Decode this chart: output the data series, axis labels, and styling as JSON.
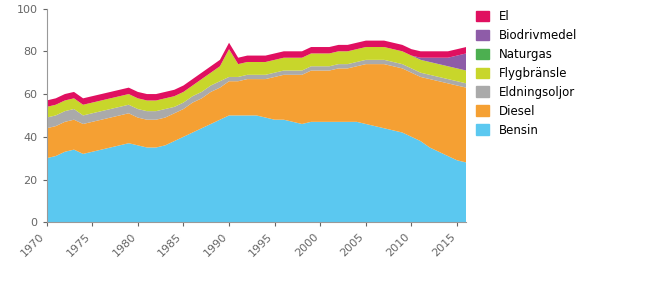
{
  "years": [
    1970,
    1971,
    1972,
    1973,
    1974,
    1975,
    1976,
    1977,
    1978,
    1979,
    1980,
    1981,
    1982,
    1983,
    1984,
    1985,
    1986,
    1987,
    1988,
    1989,
    1990,
    1991,
    1992,
    1993,
    1994,
    1995,
    1996,
    1997,
    1998,
    1999,
    2000,
    2001,
    2002,
    2003,
    2004,
    2005,
    2006,
    2007,
    2008,
    2009,
    2010,
    2011,
    2012,
    2013,
    2014,
    2015,
    2016
  ],
  "bensin": [
    30,
    31,
    33,
    34,
    32,
    33,
    34,
    35,
    36,
    37,
    36,
    35,
    35,
    36,
    38,
    40,
    42,
    44,
    46,
    48,
    50,
    50,
    50,
    50,
    49,
    48,
    48,
    47,
    46,
    47,
    47,
    47,
    47,
    47,
    47,
    46,
    45,
    44,
    43,
    42,
    40,
    38,
    35,
    33,
    31,
    29,
    28
  ],
  "diesel": [
    14,
    14,
    14,
    14,
    14,
    14,
    14,
    14,
    14,
    14,
    13,
    13,
    13,
    13,
    13,
    13,
    14,
    14,
    15,
    15,
    16,
    16,
    17,
    17,
    18,
    20,
    21,
    22,
    23,
    24,
    24,
    24,
    25,
    25,
    26,
    28,
    29,
    30,
    30,
    30,
    30,
    30,
    32,
    33,
    34,
    35,
    35
  ],
  "eldningsoljar": [
    5,
    5,
    5,
    5,
    4,
    4,
    4,
    4,
    4,
    4,
    4,
    4,
    4,
    4,
    3,
    3,
    3,
    3,
    3,
    3,
    2,
    2,
    2,
    2,
    2,
    2,
    2,
    2,
    2,
    2,
    2,
    2,
    2,
    2,
    2,
    2,
    2,
    2,
    2,
    2,
    2,
    2,
    2,
    2,
    2,
    2,
    2
  ],
  "flygbransle": [
    5,
    5,
    5,
    5,
    5,
    5,
    5,
    5,
    5,
    5,
    5,
    5,
    5,
    5,
    5,
    5,
    5,
    6,
    6,
    7,
    13,
    6,
    6,
    6,
    6,
    6,
    6,
    6,
    6,
    6,
    6,
    6,
    6,
    6,
    6,
    6,
    6,
    6,
    6,
    6,
    6,
    6,
    6,
    6,
    6,
    6,
    6
  ],
  "naturgas": [
    0,
    0,
    0,
    0,
    0,
    0,
    0,
    0,
    0,
    0,
    0,
    0,
    0,
    0,
    0,
    0,
    0,
    0,
    0,
    0,
    0,
    0,
    0,
    0,
    0,
    0,
    0,
    0,
    0,
    0,
    0,
    0,
    0,
    0,
    0,
    0,
    0,
    0,
    0,
    0,
    0,
    0,
    0,
    0,
    0,
    0,
    0
  ],
  "biodrivmedel": [
    0,
    0,
    0,
    0,
    0,
    0,
    0,
    0,
    0,
    0,
    0,
    0,
    0,
    0,
    0,
    0,
    0,
    0,
    0,
    0,
    0,
    0,
    0,
    0,
    0,
    0,
    0,
    0,
    0,
    0,
    0,
    0,
    0,
    0,
    0,
    0,
    0,
    0,
    0,
    0,
    0,
    1,
    2,
    3,
    4,
    6,
    8
  ],
  "el": [
    3,
    3,
    3,
    3,
    3,
    3,
    3,
    3,
    3,
    3,
    3,
    3,
    3,
    3,
    3,
    3,
    3,
    3,
    3,
    3,
    3,
    3,
    3,
    3,
    3,
    3,
    3,
    3,
    3,
    3,
    3,
    3,
    3,
    3,
    3,
    3,
    3,
    3,
    3,
    3,
    3,
    3,
    3,
    3,
    3,
    3,
    3
  ],
  "colors": {
    "bensin": "#5bc8f0",
    "diesel": "#f5a033",
    "eldningsoljar": "#aaaaaa",
    "flygbransle": "#c8d62b",
    "naturgas": "#4caf50",
    "biodrivmedel": "#8e5ca8",
    "el": "#e01060"
  },
  "ylim": [
    0,
    100
  ],
  "yticks": [
    0,
    20,
    40,
    60,
    80,
    100
  ],
  "xticks": [
    1970,
    1975,
    1980,
    1985,
    1990,
    1995,
    2000,
    2005,
    2010,
    2015
  ]
}
